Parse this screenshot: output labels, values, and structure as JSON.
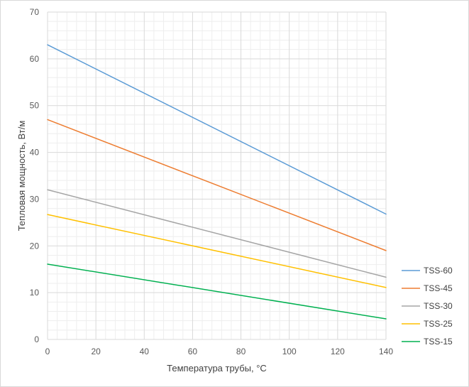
{
  "chart_data": {
    "type": "line",
    "title": "",
    "xlabel": "Температура трубы, °С",
    "ylabel": "Тепловая мощность, Вт/м",
    "xlim": [
      0,
      140
    ],
    "ylim": [
      0,
      70
    ],
    "xticks": [
      0,
      20,
      40,
      60,
      80,
      100,
      120,
      140
    ],
    "yticks": [
      0,
      10,
      20,
      30,
      40,
      50,
      60,
      70
    ],
    "x_minor_step": 4,
    "y_minor_step": 2,
    "grid": true,
    "legend_position": "right",
    "series": [
      {
        "name": "TSS-60",
        "color": "#5B9BD5",
        "x": [
          0,
          140
        ],
        "values": [
          63,
          26.8
        ]
      },
      {
        "name": "TSS-45",
        "color": "#ED7D31",
        "x": [
          0,
          140
        ],
        "values": [
          47,
          19
        ]
      },
      {
        "name": "TSS-30",
        "color": "#A5A5A5",
        "x": [
          0,
          140
        ],
        "values": [
          32,
          13.3
        ]
      },
      {
        "name": "TSS-25",
        "color": "#FFC000",
        "x": [
          0,
          140
        ],
        "values": [
          26.7,
          11.1
        ]
      },
      {
        "name": "TSS-15",
        "color": "#00B050",
        "x": [
          0,
          140
        ],
        "values": [
          16.1,
          4.4
        ]
      }
    ]
  }
}
